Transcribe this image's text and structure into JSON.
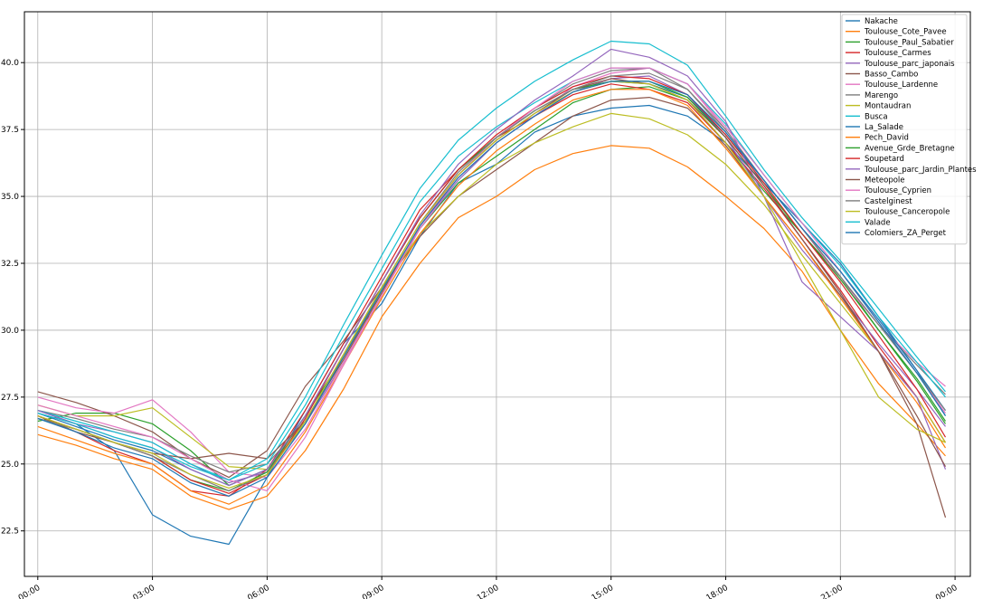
{
  "chart_data": {
    "type": "line",
    "title": "",
    "xlabel": "",
    "ylabel": "",
    "xlim": [
      -0.35,
      24.4
    ],
    "ylim": [
      20.8,
      41.9
    ],
    "grid": true,
    "legend_position": "top-right",
    "x_ticks": [
      {
        "value": 0,
        "label": "00:00"
      },
      {
        "value": 3,
        "label": "03:00"
      },
      {
        "value": 6,
        "label": "06:00"
      },
      {
        "value": 9,
        "label": "09:00"
      },
      {
        "value": 12,
        "label": "12:00"
      },
      {
        "value": 15,
        "label": "15:00"
      },
      {
        "value": 18,
        "label": "18:00"
      },
      {
        "value": 21,
        "label": "21:00"
      },
      {
        "value": 24,
        "label": "00:00"
      }
    ],
    "y_ticks": [
      {
        "value": 22.5,
        "label": "22.5"
      },
      {
        "value": 25.0,
        "label": "25.0"
      },
      {
        "value": 27.5,
        "label": "27.5"
      },
      {
        "value": 30.0,
        "label": "30.0"
      },
      {
        "value": 32.5,
        "label": "32.5"
      },
      {
        "value": 35.0,
        "label": "35.0"
      },
      {
        "value": 37.5,
        "label": "37.5"
      },
      {
        "value": 40.0,
        "label": "40.0"
      }
    ],
    "x": [
      0,
      1,
      2,
      3,
      4,
      5,
      6,
      7,
      8,
      9,
      10,
      11,
      12,
      13,
      14,
      15,
      16,
      17,
      18,
      19,
      20,
      21,
      22,
      23,
      23.75
    ],
    "series": [
      {
        "name": "Nakache",
        "color": "#1f77b4",
        "values": [
          27.0,
          26.5,
          25.5,
          23.1,
          22.3,
          22.0,
          24.5,
          27.0,
          29.5,
          31.0,
          33.5,
          35.5,
          36.2,
          37.4,
          38.0,
          38.3,
          38.4,
          38.0,
          37.0,
          35.5,
          34.0,
          32.5,
          30.5,
          28.5,
          26.8
        ]
      },
      {
        "name": "Toulouse_Cote_Pavee",
        "color": "#ff7f0e",
        "values": [
          26.1,
          25.7,
          25.2,
          24.8,
          23.8,
          23.3,
          23.8,
          25.5,
          27.8,
          30.5,
          32.5,
          34.2,
          35.0,
          36.0,
          36.6,
          36.9,
          36.8,
          36.1,
          35.0,
          33.8,
          32.2,
          30.0,
          28.0,
          26.5,
          25.3
        ]
      },
      {
        "name": "Toulouse_Paul_Sabatier",
        "color": "#2ca02c",
        "values": [
          26.6,
          26.9,
          26.9,
          26.5,
          25.5,
          24.2,
          24.8,
          26.8,
          29.0,
          31.5,
          33.8,
          35.5,
          36.5,
          37.5,
          38.5,
          39.0,
          39.1,
          38.6,
          37.0,
          35.2,
          33.6,
          32.0,
          30.0,
          28.2,
          26.6
        ]
      },
      {
        "name": "Toulouse_Carmes",
        "color": "#d62728",
        "values": [
          26.8,
          26.2,
          25.5,
          25.0,
          24.0,
          23.8,
          24.8,
          27.0,
          29.5,
          32.0,
          34.5,
          36.0,
          37.2,
          38.0,
          38.8,
          39.2,
          39.0,
          38.5,
          37.0,
          35.3,
          33.4,
          31.5,
          29.4,
          27.5,
          25.8
        ]
      },
      {
        "name": "Toulouse_parc_japonais",
        "color": "#9467bd",
        "values": [
          26.9,
          26.5,
          26.2,
          25.8,
          25.0,
          24.3,
          24.7,
          26.5,
          28.8,
          31.3,
          33.8,
          35.6,
          37.0,
          38.0,
          38.9,
          39.4,
          39.5,
          38.8,
          37.2,
          35.0,
          33.0,
          31.3,
          29.5,
          27.8,
          26.4
        ]
      },
      {
        "name": "Basso_Cambo",
        "color": "#8c564b",
        "values": [
          27.7,
          27.3,
          26.8,
          26.2,
          25.2,
          24.5,
          25.5,
          27.9,
          29.6,
          31.6,
          33.5,
          35.0,
          36.0,
          37.0,
          38.0,
          38.6,
          38.7,
          38.3,
          36.9,
          35.0,
          33.2,
          31.3,
          29.2,
          26.5,
          23.0
        ]
      },
      {
        "name": "Toulouse_Lardenne",
        "color": "#e377c2",
        "values": [
          27.5,
          27.1,
          26.9,
          27.4,
          26.2,
          24.7,
          24.5,
          26.3,
          28.8,
          31.3,
          33.8,
          35.7,
          37.0,
          38.0,
          39.1,
          39.6,
          39.8,
          39.2,
          37.5,
          35.6,
          33.8,
          31.9,
          30.2,
          28.8,
          27.9
        ]
      },
      {
        "name": "Marengo",
        "color": "#7f7f7f",
        "values": [
          27.0,
          26.7,
          26.3,
          26.0,
          25.3,
          24.7,
          25.0,
          26.6,
          29.0,
          31.4,
          33.9,
          35.8,
          37.2,
          38.3,
          39.2,
          39.7,
          39.8,
          39.0,
          37.5,
          35.6,
          33.8,
          32.0,
          30.2,
          28.7,
          27.6
        ]
      },
      {
        "name": "Montaudran",
        "color": "#bcbd22",
        "values": [
          27.2,
          26.8,
          26.8,
          27.1,
          26.0,
          24.9,
          24.8,
          26.5,
          29.0,
          31.6,
          33.6,
          35.0,
          36.2,
          37.0,
          37.6,
          38.1,
          37.9,
          37.3,
          36.2,
          34.7,
          32.8,
          31.0,
          29.2,
          27.5,
          25.8
        ]
      },
      {
        "name": "Busca",
        "color": "#17becf",
        "values": [
          27.0,
          26.6,
          26.2,
          25.8,
          25.0,
          24.4,
          25.0,
          27.2,
          29.8,
          32.3,
          34.8,
          36.5,
          37.6,
          38.5,
          39.3,
          39.8,
          39.8,
          39.2,
          37.7,
          35.8,
          34.0,
          32.4,
          30.5,
          28.8,
          27.5
        ]
      },
      {
        "name": "La_Salade",
        "color": "#1f77b4",
        "values": [
          26.9,
          26.4,
          25.9,
          25.5,
          24.8,
          24.2,
          24.8,
          26.8,
          29.3,
          31.8,
          34.2,
          36.0,
          37.2,
          38.2,
          39.0,
          39.3,
          39.2,
          38.7,
          37.3,
          35.6,
          33.8,
          32.2,
          30.4,
          28.5,
          27.0
        ]
      },
      {
        "name": "Pech_David",
        "color": "#ff7f0e",
        "values": [
          26.4,
          25.9,
          25.4,
          25.0,
          24.0,
          23.5,
          24.2,
          26.2,
          28.7,
          31.2,
          33.6,
          35.4,
          36.7,
          37.7,
          38.6,
          39.0,
          39.0,
          38.4,
          36.8,
          35.0,
          33.2,
          31.2,
          29.2,
          27.3,
          25.6
        ]
      },
      {
        "name": "Avenue_Grde_Bretagne",
        "color": "#2ca02c",
        "values": [
          26.7,
          26.3,
          25.8,
          25.3,
          24.4,
          24.0,
          24.7,
          26.8,
          29.3,
          31.8,
          34.2,
          36.0,
          37.2,
          38.2,
          39.0,
          39.3,
          39.3,
          38.7,
          37.2,
          35.4,
          33.6,
          31.9,
          30.0,
          28.1,
          26.5
        ]
      },
      {
        "name": "Soupetard",
        "color": "#d62728",
        "values": [
          26.8,
          26.3,
          25.8,
          25.3,
          24.4,
          23.9,
          24.6,
          26.7,
          29.3,
          31.8,
          34.2,
          36.0,
          37.3,
          38.3,
          39.1,
          39.5,
          39.4,
          38.8,
          37.3,
          35.5,
          33.6,
          31.8,
          29.8,
          27.8,
          26.0
        ]
      },
      {
        "name": "Toulouse_parc_Jardin_Plantes",
        "color": "#9467bd",
        "values": [
          27.0,
          26.5,
          26.0,
          25.6,
          24.8,
          24.2,
          24.8,
          26.8,
          29.3,
          31.8,
          34.3,
          36.2,
          37.5,
          38.6,
          39.5,
          40.5,
          40.2,
          39.5,
          37.8,
          35.0,
          31.8,
          30.5,
          29.2,
          27.5,
          24.8
        ]
      },
      {
        "name": "Meteopole",
        "color": "#8c564b",
        "values": [
          26.8,
          26.2,
          25.8,
          25.4,
          25.2,
          25.4,
          25.2,
          26.6,
          28.9,
          31.4,
          33.9,
          35.8,
          37.1,
          38.1,
          39.0,
          39.4,
          39.2,
          38.6,
          37.2,
          35.4,
          33.4,
          31.4,
          29.2,
          26.8,
          24.9
        ]
      },
      {
        "name": "Toulouse_Cyprien",
        "color": "#e377c2",
        "values": [
          27.2,
          26.8,
          26.4,
          26.0,
          25.2,
          24.4,
          24.0,
          26.0,
          28.7,
          31.3,
          33.9,
          35.8,
          37.2,
          38.3,
          39.3,
          39.8,
          39.8,
          39.2,
          37.6,
          35.8,
          34.0,
          32.2,
          30.3,
          28.4,
          26.9
        ]
      },
      {
        "name": "Castelginest",
        "color": "#7f7f7f",
        "values": [
          26.7,
          26.3,
          25.8,
          25.3,
          24.6,
          24.0,
          24.6,
          26.6,
          29.1,
          31.6,
          34.0,
          35.9,
          37.2,
          38.2,
          39.0,
          39.5,
          39.6,
          39.0,
          37.4,
          35.6,
          33.8,
          32.0,
          30.2,
          28.4,
          27.0
        ]
      },
      {
        "name": "Toulouse_Canceropole",
        "color": "#bcbd22",
        "values": [
          26.8,
          26.3,
          25.8,
          25.4,
          24.6,
          24.1,
          24.6,
          26.6,
          29.1,
          31.6,
          34.0,
          35.8,
          37.1,
          38.1,
          38.9,
          39.3,
          39.2,
          38.6,
          37.0,
          35.0,
          32.5,
          30.0,
          27.5,
          26.3,
          25.8
        ]
      },
      {
        "name": "Valade",
        "color": "#17becf",
        "values": [
          26.9,
          26.5,
          26.0,
          25.6,
          24.9,
          24.4,
          25.2,
          27.5,
          30.2,
          32.8,
          35.3,
          37.1,
          38.3,
          39.3,
          40.1,
          40.8,
          40.7,
          39.9,
          38.0,
          36.0,
          34.2,
          32.6,
          30.8,
          29.0,
          27.7
        ]
      },
      {
        "name": "Colomiers_ZA_Perget",
        "color": "#1f77b4",
        "values": [
          26.7,
          26.2,
          25.6,
          25.2,
          24.3,
          23.8,
          24.5,
          26.5,
          29.0,
          31.5,
          33.9,
          35.7,
          37.0,
          38.0,
          38.9,
          39.3,
          39.3,
          38.8,
          37.4,
          35.6,
          33.8,
          32.2,
          30.3,
          28.4,
          26.8
        ]
      }
    ]
  }
}
